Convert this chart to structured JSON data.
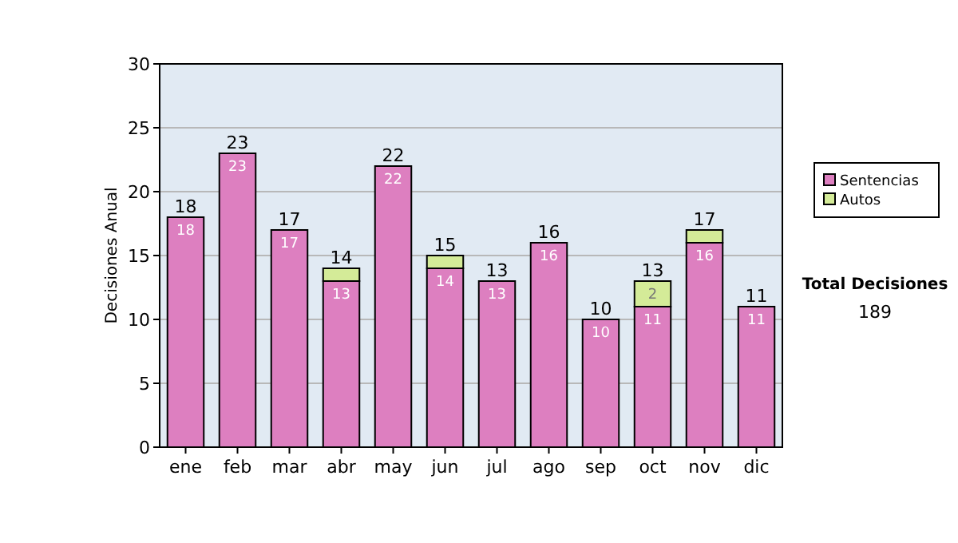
{
  "chart_data": {
    "type": "bar",
    "ylabel": "Decisiones Anual",
    "categories": [
      "ene",
      "feb",
      "mar",
      "abr",
      "may",
      "jun",
      "jul",
      "ago",
      "sep",
      "oct",
      "nov",
      "dic"
    ],
    "series": [
      {
        "name": "Sentencias",
        "color": "#dd7fc0",
        "values": [
          18,
          23,
          17,
          13,
          22,
          14,
          13,
          16,
          10,
          11,
          16,
          11
        ],
        "value_labels": [
          "18",
          "23",
          "17",
          "13",
          "22",
          "14",
          "13",
          "16",
          "10",
          "11",
          "16",
          "11"
        ]
      },
      {
        "name": "Autos",
        "color": "#d4eb98",
        "values": [
          0,
          0,
          0,
          1,
          0,
          1,
          0,
          0,
          0,
          2,
          1,
          0
        ],
        "value_labels": [
          null,
          null,
          null,
          null,
          null,
          null,
          null,
          null,
          null,
          "2",
          null,
          null
        ]
      }
    ],
    "stacked": true,
    "totals": [
      "18",
      "23",
      "17",
      "14",
      "22",
      "15",
      "13",
      "16",
      "10",
      "13",
      "17",
      "11"
    ],
    "ylim": [
      0,
      30
    ],
    "yticks": [
      0,
      5,
      10,
      15,
      20,
      25,
      30
    ],
    "grid": "y",
    "legend": "right",
    "annotations": [
      "Total Decisiones",
      "189"
    ]
  }
}
